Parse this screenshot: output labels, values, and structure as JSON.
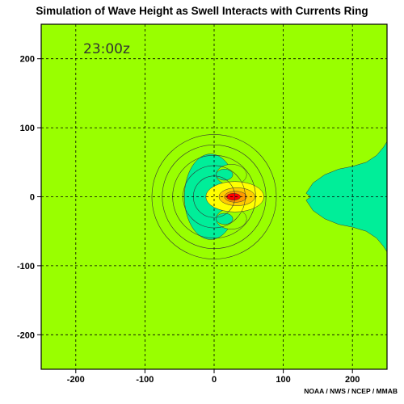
{
  "title": "Simulation of Wave Height as Swell Interacts with Currents Ring",
  "credit": "NOAA / NWS / NCEP / MMAB",
  "chart_data": {
    "type": "heatmap",
    "title": "Simulation of Wave Height as Swell Interacts with Currents Ring",
    "time_label": "23:00z",
    "xlabel": "",
    "ylabel": "",
    "xlim": [
      -250,
      250
    ],
    "ylim": [
      -250,
      250
    ],
    "x_ticks": [
      -200,
      -100,
      0,
      100,
      200
    ],
    "y_ticks": [
      -200,
      -100,
      0,
      100,
      200
    ],
    "grid": true,
    "grid_style": "dashed",
    "background_color": "#99ff00",
    "current_ring": {
      "center": [
        0,
        0
      ],
      "radii": [
        30,
        45,
        60,
        75,
        90
      ]
    },
    "wave_height_regions": [
      {
        "name": "crescent-low",
        "color": "#00ee99",
        "center": [
          -5,
          0
        ],
        "extent_x": 38,
        "extent_y": 62
      },
      {
        "name": "pocket-north",
        "color": "#99ff00",
        "center": [
          25,
          32
        ],
        "extent_x": 22,
        "extent_y": 15
      },
      {
        "name": "pocket-south",
        "color": "#99ff00",
        "center": [
          25,
          -32
        ],
        "extent_x": 22,
        "extent_y": 15
      },
      {
        "name": "eye-north",
        "color": "#00ee99",
        "center": [
          15,
          32
        ],
        "extent_x": 12,
        "extent_y": 8
      },
      {
        "name": "eye-south",
        "color": "#00ee99",
        "center": [
          15,
          -32
        ],
        "extent_x": 12,
        "extent_y": 8
      },
      {
        "name": "high-1",
        "color": "#ffff00",
        "center": [
          30,
          0
        ],
        "extent_x": 42,
        "extent_y": 22
      },
      {
        "name": "high-2",
        "color": "#ffcc00",
        "center": [
          33,
          0
        ],
        "extent_x": 26,
        "extent_y": 13
      },
      {
        "name": "high-3",
        "color": "#ff9900",
        "center": [
          31,
          0
        ],
        "extent_x": 16,
        "extent_y": 8
      },
      {
        "name": "peak",
        "color": "#ff0000",
        "center": [
          28,
          0
        ],
        "extent_x": 10,
        "extent_y": 5
      }
    ],
    "wake_region": {
      "color": "#00ee99",
      "boundary": [
        [
          250,
          80
        ],
        [
          245,
          72
        ],
        [
          235,
          60
        ],
        [
          220,
          50
        ],
        [
          200,
          44
        ],
        [
          180,
          40
        ],
        [
          160,
          32
        ],
        [
          143,
          20
        ],
        [
          133,
          5
        ],
        [
          140,
          0
        ],
        [
          133,
          -5
        ],
        [
          143,
          -20
        ],
        [
          160,
          -32
        ],
        [
          180,
          -40
        ],
        [
          200,
          -44
        ],
        [
          220,
          -50
        ],
        [
          235,
          -60
        ],
        [
          245,
          -72
        ],
        [
          250,
          -80
        ]
      ]
    }
  }
}
